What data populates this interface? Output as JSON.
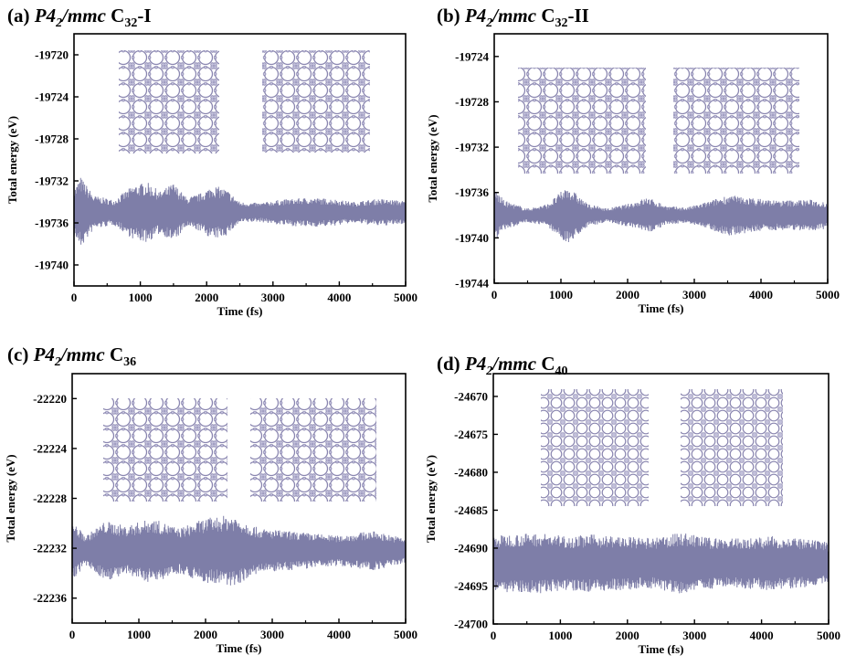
{
  "chart_data": [
    {
      "type": "line",
      "panel": "(a)",
      "title_group": "P4",
      "title_sub": "2",
      "title_rest": "/mmc",
      "title_formula": "C",
      "title_formula_sub": "32",
      "title_suffix": "-I",
      "xlabel": "Time (fs)",
      "ylabel": "Total energy (eV)",
      "xlim": [
        0,
        5000
      ],
      "ylim": [
        -19742,
        -19718
      ],
      "xticks": [
        0,
        1000,
        2000,
        3000,
        4000,
        5000
      ],
      "yticks": [
        -19740,
        -19736,
        -19732,
        -19728,
        -19724,
        -19720
      ],
      "series": [
        {
          "mean": -19735,
          "envelope": [
            [
              0,
              2.2
            ],
            [
              100,
              3.4
            ],
            [
              300,
              1.6
            ],
            [
              600,
              1.2
            ],
            [
              900,
              2.6
            ],
            [
              1100,
              2.9
            ],
            [
              1300,
              2.0
            ],
            [
              1500,
              2.8
            ],
            [
              1700,
              1.4
            ],
            [
              1900,
              1.8
            ],
            [
              2100,
              2.6
            ],
            [
              2300,
              2.2
            ],
            [
              2500,
              1.0
            ],
            [
              2800,
              0.9
            ],
            [
              3100,
              1.2
            ],
            [
              3500,
              1.4
            ],
            [
              3900,
              1.3
            ],
            [
              4200,
              1.0
            ],
            [
              4600,
              1.3
            ],
            [
              5000,
              1.1
            ]
          ]
        }
      ],
      "color": "#7e7ea8"
    },
    {
      "type": "line",
      "panel": "(b)",
      "title_group": "P4",
      "title_sub": "2",
      "title_rest": "/mmc",
      "title_formula": "C",
      "title_formula_sub": "32",
      "title_suffix": "-II",
      "xlabel": "Time (fs)",
      "ylabel": "Total energy (eV)",
      "xlim": [
        0,
        5000
      ],
      "ylim": [
        -19744,
        -19722
      ],
      "xticks": [
        0,
        1000,
        2000,
        3000,
        4000,
        5000
      ],
      "yticks": [
        -19744,
        -19740,
        -19736,
        -19732,
        -19728,
        -19724
      ],
      "series": [
        {
          "mean": -19738,
          "envelope": [
            [
              0,
              2.4
            ],
            [
              150,
              1.3
            ],
            [
              500,
              0.6
            ],
            [
              800,
              1.0
            ],
            [
              1100,
              2.6
            ],
            [
              1400,
              1.0
            ],
            [
              1700,
              0.6
            ],
            [
              2000,
              1.0
            ],
            [
              2300,
              1.6
            ],
            [
              2600,
              0.8
            ],
            [
              2900,
              0.7
            ],
            [
              3200,
              1.2
            ],
            [
              3500,
              1.8
            ],
            [
              3900,
              1.5
            ],
            [
              4300,
              1.3
            ],
            [
              4700,
              1.4
            ],
            [
              5000,
              1.2
            ]
          ]
        }
      ],
      "color": "#7e7ea8"
    },
    {
      "type": "line",
      "panel": "(c)",
      "title_group": "P4",
      "title_sub": "2",
      "title_rest": "/mmc",
      "title_formula": "C",
      "title_formula_sub": "36",
      "title_suffix": "",
      "xlabel": "Time (fs)",
      "ylabel": "Total energy (eV)",
      "xlim": [
        0,
        5000
      ],
      "ylim": [
        -22238,
        -22218
      ],
      "xticks": [
        0,
        1000,
        2000,
        3000,
        4000,
        5000
      ],
      "yticks": [
        -22236,
        -22232,
        -22228,
        -22224,
        -22220
      ],
      "series": [
        {
          "mean": -22232.2,
          "envelope": [
            [
              0,
              2.4
            ],
            [
              200,
              1.2
            ],
            [
              500,
              2.4
            ],
            [
              800,
              2.0
            ],
            [
              1200,
              2.6
            ],
            [
              1600,
              1.8
            ],
            [
              2000,
              2.6
            ],
            [
              2400,
              2.9
            ],
            [
              2800,
              1.8
            ],
            [
              3200,
              1.6
            ],
            [
              3600,
              1.4
            ],
            [
              4000,
              1.2
            ],
            [
              4500,
              1.6
            ],
            [
              5000,
              1.0
            ]
          ]
        }
      ],
      "color": "#7e7ea8"
    },
    {
      "type": "line",
      "panel": "(d)",
      "title_group": "P4",
      "title_sub": "2",
      "title_rest": "/mmc",
      "title_formula": "C",
      "title_formula_sub": "40",
      "title_suffix": "",
      "xlabel": "Time (fs)",
      "ylabel": "Total energy (eV)",
      "xlim": [
        0,
        5000
      ],
      "ylim": [
        -24700,
        -24667
      ],
      "xticks": [
        0,
        1000,
        2000,
        3000,
        4000,
        5000
      ],
      "yticks": [
        -24700,
        -24695,
        -24690,
        -24685,
        -24680,
        -24675,
        -24670
      ],
      "series": [
        {
          "mean": -24692,
          "envelope": [
            [
              0,
              3.6
            ],
            [
              300,
              3.9
            ],
            [
              700,
              4.0
            ],
            [
              1100,
              3.6
            ],
            [
              1500,
              3.8
            ],
            [
              2000,
              3.5
            ],
            [
              2400,
              3.3
            ],
            [
              2800,
              4.1
            ],
            [
              3200,
              3.4
            ],
            [
              3700,
              3.3
            ],
            [
              4200,
              3.6
            ],
            [
              4600,
              3.2
            ],
            [
              5000,
              2.8
            ]
          ]
        }
      ],
      "color": "#7e7ea8"
    }
  ]
}
